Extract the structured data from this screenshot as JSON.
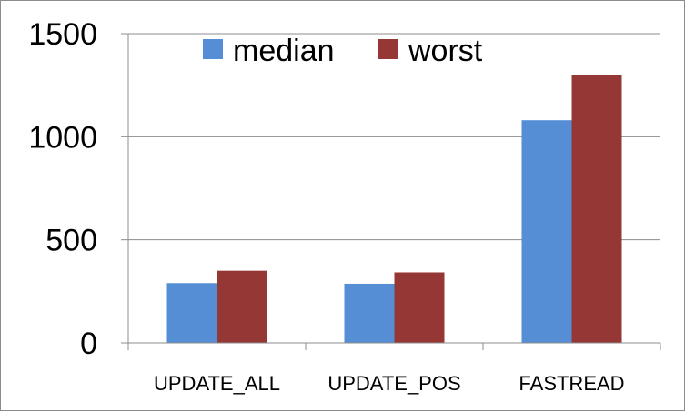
{
  "chart_data": {
    "type": "bar",
    "categories": [
      "UPDATE_ALL",
      "UPDATE_POS",
      "FASTREAD"
    ],
    "series": [
      {
        "name": "median",
        "values": [
          290,
          287,
          1080
        ],
        "color": "#558ed5"
      },
      {
        "name": "worst",
        "values": [
          350,
          342,
          1300
        ],
        "color": "#953735"
      }
    ],
    "ylim": [
      0,
      1500
    ],
    "yticks": [
      "0",
      "500",
      "1000",
      "1500"
    ],
    "grid": true,
    "legend": "top-center"
  }
}
